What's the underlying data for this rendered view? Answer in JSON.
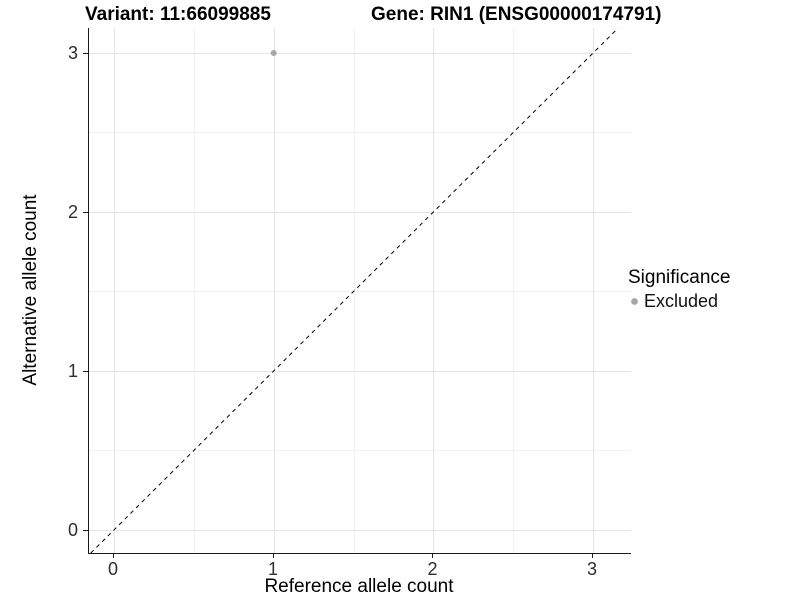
{
  "titles": {
    "variant": "Variant: 11:66099885",
    "gene": "Gene: RIN1 (ENSG00000174791)"
  },
  "axes": {
    "x": {
      "label": "Reference allele count",
      "ticks": [
        "0",
        "1",
        "2",
        "3"
      ]
    },
    "y": {
      "label": "Alternative allele count",
      "ticks": [
        "0",
        "1",
        "2",
        "3"
      ]
    }
  },
  "legend": {
    "title": "Significance",
    "items": [
      {
        "label": "Excluded",
        "color": "#a6a6a6"
      }
    ]
  },
  "colors": {
    "point_excluded": "#a6a6a6",
    "identity_line": "#000000",
    "grid_major": "#e4e4e4",
    "grid_minor": "#f1f1f1",
    "axis_line": "#1a1a1a",
    "tick_text": "#2e2e2e"
  },
  "chart_data": {
    "type": "scatter",
    "title": "Variant: 11:66099885 | Gene: RIN1 (ENSG00000174791)",
    "xlabel": "Reference allele count",
    "ylabel": "Alternative allele count",
    "xlim": [
      -0.16,
      3.24
    ],
    "ylim": [
      -0.15,
      3.16
    ],
    "x_ticks": [
      0,
      1,
      2,
      3
    ],
    "y_ticks": [
      0,
      1,
      2,
      3
    ],
    "grid": true,
    "legend_position": "right",
    "series": [
      {
        "name": "Excluded",
        "color": "#a6a6a6",
        "points": [
          {
            "x": 1,
            "y": 3
          }
        ]
      }
    ],
    "reference_line": {
      "kind": "identity y=x",
      "style": "dashed",
      "color": "#000000"
    }
  }
}
